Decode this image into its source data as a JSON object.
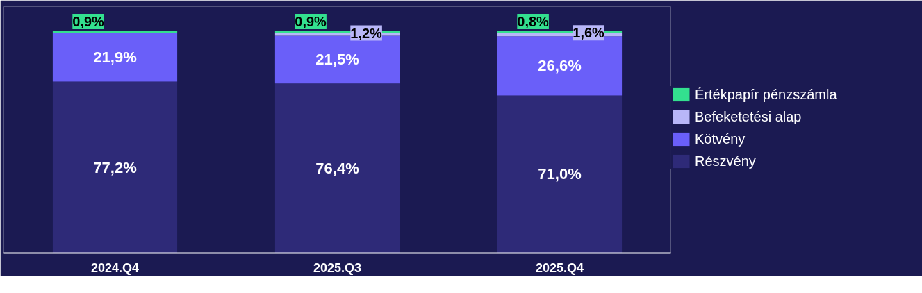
{
  "chart_data": {
    "type": "bar",
    "stacked": true,
    "categories": [
      "2024.Q4",
      "2025.Q3",
      "2025.Q4"
    ],
    "series": [
      {
        "name": "Részvény",
        "color": "#2e2a78",
        "values": [
          77.2,
          76.4,
          71.0
        ],
        "value_labels": [
          "77,2%",
          "76,4%",
          "71,0%"
        ]
      },
      {
        "name": "Kötvény",
        "color": "#6a5ff9",
        "values": [
          21.9,
          21.5,
          26.6
        ],
        "value_labels": [
          "21,9%",
          "21,5%",
          "26,6%"
        ]
      },
      {
        "name": "Befeketetési alap",
        "color": "#b8b6f8",
        "values": [
          0.0,
          1.2,
          1.6
        ],
        "value_labels": [
          null,
          "1,2%",
          "1,6%"
        ]
      },
      {
        "name": "Értékpapír pénzszámla",
        "color": "#33e08f",
        "values": [
          0.9,
          0.9,
          0.8
        ],
        "value_labels": [
          "0,9%",
          "0,9%",
          "0,8%"
        ]
      }
    ],
    "legend": "right",
    "grid": false
  }
}
